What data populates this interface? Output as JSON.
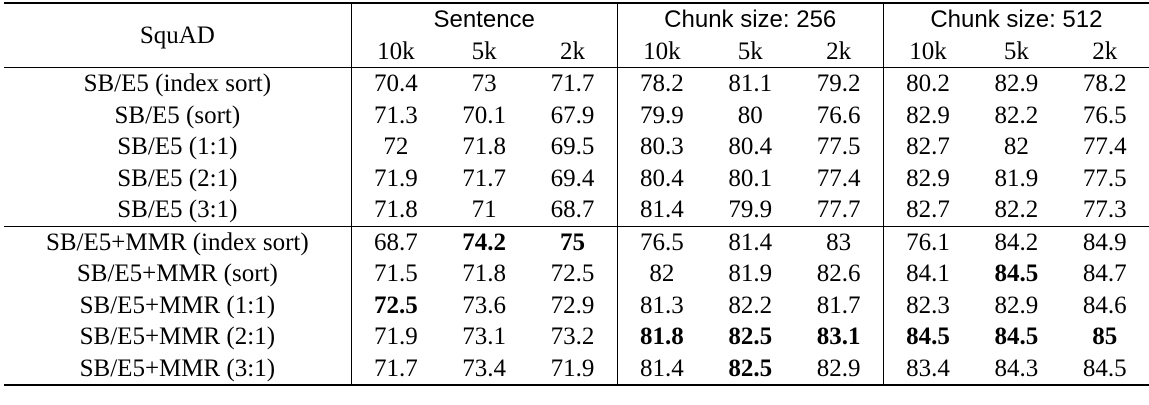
{
  "table": {
    "corner_label": "SquAD",
    "groups": [
      "Sentence",
      "Chunk size: 256",
      "Chunk size: 512"
    ],
    "subheaders": [
      "10k",
      "5k",
      "2k",
      "10k",
      "5k",
      "2k",
      "10k",
      "5k",
      "2k"
    ],
    "rows": [
      {
        "label": "SB/E5 (index sort)",
        "values": [
          "70.4",
          "73",
          "71.7",
          "78.2",
          "81.1",
          "79.2",
          "80.2",
          "82.9",
          "78.2"
        ],
        "bold": []
      },
      {
        "label": "SB/E5 (sort)",
        "values": [
          "71.3",
          "70.1",
          "67.9",
          "79.9",
          "80",
          "76.6",
          "82.9",
          "82.2",
          "76.5"
        ],
        "bold": []
      },
      {
        "label": "SB/E5 (1:1)",
        "values": [
          "72",
          "71.8",
          "69.5",
          "80.3",
          "80.4",
          "77.5",
          "82.7",
          "82",
          "77.4"
        ],
        "bold": []
      },
      {
        "label": "SB/E5 (2:1)",
        "values": [
          "71.9",
          "71.7",
          "69.4",
          "80.4",
          "80.1",
          "77.4",
          "82.9",
          "81.9",
          "77.5"
        ],
        "bold": []
      },
      {
        "label": "SB/E5 (3:1)",
        "values": [
          "71.8",
          "71",
          "68.7",
          "81.4",
          "79.9",
          "77.7",
          "82.7",
          "82.2",
          "77.3"
        ],
        "bold": []
      },
      {
        "label": "SB/E5+MMR (index sort)",
        "values": [
          "68.7",
          "74.2",
          "75",
          "76.5",
          "81.4",
          "83",
          "76.1",
          "84.2",
          "84.9"
        ],
        "bold": [
          1,
          2
        ]
      },
      {
        "label": "SB/E5+MMR (sort)",
        "values": [
          "71.5",
          "71.8",
          "72.5",
          "82",
          "81.9",
          "82.6",
          "84.1",
          "84.5",
          "84.7"
        ],
        "bold": [
          7
        ]
      },
      {
        "label": "SB/E5+MMR (1:1)",
        "values": [
          "72.5",
          "73.6",
          "72.9",
          "81.3",
          "82.2",
          "81.7",
          "82.3",
          "82.9",
          "84.6"
        ],
        "bold": [
          0
        ]
      },
      {
        "label": "SB/E5+MMR (2:1)",
        "values": [
          "71.9",
          "73.1",
          "73.2",
          "81.8",
          "82.5",
          "83.1",
          "84.5",
          "84.5",
          "85"
        ],
        "bold": [
          3,
          4,
          5,
          6,
          7,
          8
        ]
      },
      {
        "label": "SB/E5+MMR (3:1)",
        "values": [
          "71.7",
          "73.4",
          "71.9",
          "81.4",
          "82.5",
          "82.9",
          "83.4",
          "84.3",
          "84.5"
        ],
        "bold": [
          4
        ]
      }
    ]
  }
}
